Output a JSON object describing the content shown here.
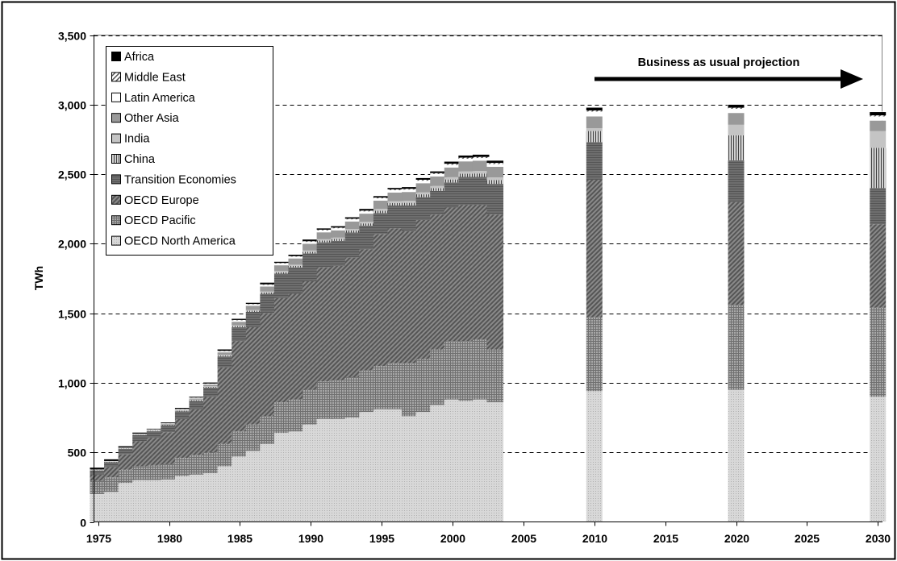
{
  "chart_data": {
    "type": "bar",
    "title": "",
    "xlabel": "",
    "ylabel": "TWh",
    "ylim": [
      0,
      3500
    ],
    "xlim": [
      1974.7,
      2030.3
    ],
    "grid": "horizontal dashed",
    "legend_position": "top-left",
    "annotation": "Business as usual projection",
    "y_ticks": [
      "0",
      "500",
      "1,000",
      "1,500",
      "2,000",
      "2,500",
      "3,000",
      "3,500"
    ],
    "x_ticks": [
      "1975",
      "1980",
      "1985",
      "1990",
      "1995",
      "2000",
      "2005",
      "2010",
      "2015",
      "2020",
      "2025",
      "2030"
    ],
    "x_tick_values": [
      1975,
      1980,
      1985,
      1990,
      1995,
      2000,
      2005,
      2010,
      2015,
      2020,
      2025,
      2030
    ],
    "legend": [
      "Africa",
      "Middle East",
      "Latin America",
      "Other Asia",
      "India",
      "China",
      "Transition Economies",
      "OECD Europe",
      "OECD Pacific",
      "OECD North America"
    ],
    "series_order": [
      "OECD North America",
      "OECD Pacific",
      "OECD Europe",
      "Transition Economies",
      "China",
      "India",
      "Other Asia",
      "Latin America",
      "Middle East",
      "Africa"
    ],
    "x": [
      1975,
      1976,
      1977,
      1978,
      1979,
      1980,
      1981,
      1982,
      1983,
      1984,
      1985,
      1986,
      1987,
      1988,
      1989,
      1990,
      1991,
      1992,
      1993,
      1994,
      1995,
      1996,
      1997,
      1998,
      1999,
      2000,
      2001,
      2002,
      2003,
      2010,
      2020,
      2030
    ],
    "series": [
      {
        "name": "OECD North America",
        "values": [
          200,
          215,
          280,
          300,
          300,
          305,
          330,
          340,
          350,
          400,
          470,
          510,
          560,
          640,
          650,
          700,
          740,
          740,
          750,
          790,
          810,
          810,
          760,
          790,
          840,
          880,
          870,
          880,
          860,
          940,
          950,
          900
        ]
      },
      {
        "name": "OECD Pacific",
        "values": [
          95,
          105,
          95,
          100,
          105,
          110,
          130,
          140,
          150,
          160,
          180,
          190,
          200,
          220,
          230,
          250,
          270,
          280,
          290,
          300,
          310,
          330,
          380,
          380,
          400,
          420,
          430,
          430,
          380,
          530,
          610,
          640
        ]
      },
      {
        "name": "OECD Europe",
        "values": [
          45,
          75,
          110,
          180,
          200,
          230,
          280,
          330,
          400,
          550,
          650,
          700,
          740,
          750,
          760,
          780,
          820,
          820,
          860,
          870,
          950,
          970,
          950,
          1000,
          970,
          960,
          980,
          970,
          970,
          990,
          740,
          600
        ]
      },
      {
        "name": "Transition Economies",
        "values": [
          30,
          35,
          40,
          45,
          48,
          50,
          55,
          60,
          65,
          80,
          100,
          110,
          140,
          175,
          190,
          200,
          180,
          180,
          180,
          170,
          150,
          165,
          185,
          165,
          170,
          180,
          200,
          200,
          220,
          270,
          300,
          260
        ]
      },
      {
        "name": "China",
        "values": [
          2,
          2,
          2,
          2,
          3,
          3,
          4,
          5,
          5,
          6,
          8,
          8,
          9,
          10,
          11,
          12,
          13,
          14,
          15,
          16,
          17,
          18,
          19,
          20,
          20,
          22,
          23,
          25,
          27,
          80,
          180,
          290
        ]
      },
      {
        "name": "India",
        "values": [
          2,
          2,
          2,
          2,
          3,
          3,
          3,
          4,
          5,
          5,
          6,
          6,
          7,
          8,
          8,
          9,
          9,
          10,
          10,
          12,
          13,
          13,
          14,
          14,
          15,
          16,
          17,
          18,
          20,
          20,
          75,
          120
        ]
      },
      {
        "name": "Other Asia",
        "values": [
          1,
          2,
          2,
          3,
          3,
          4,
          5,
          8,
          12,
          18,
          25,
          30,
          36,
          42,
          45,
          48,
          50,
          52,
          55,
          58,
          60,
          62,
          64,
          66,
          68,
          70,
          72,
          74,
          76,
          85,
          85,
          75
        ]
      },
      {
        "name": "Latin America",
        "values": [
          1,
          1,
          2,
          2,
          3,
          3,
          4,
          5,
          6,
          8,
          10,
          10,
          12,
          13,
          13,
          14,
          14,
          15,
          15,
          16,
          16,
          17,
          17,
          18,
          18,
          19,
          19,
          19,
          20,
          35,
          30,
          30
        ]
      },
      {
        "name": "Middle East",
        "values": [
          1,
          1,
          1,
          1,
          1,
          1,
          2,
          2,
          2,
          3,
          3,
          3,
          4,
          4,
          4,
          5,
          5,
          5,
          5,
          6,
          6,
          6,
          6,
          7,
          7,
          8,
          8,
          8,
          8,
          8,
          8,
          8
        ]
      },
      {
        "name": "Africa",
        "values": [
          13,
          12,
          10,
          7,
          4,
          6,
          7,
          6,
          7,
          10,
          8,
          8,
          12,
          8,
          10,
          12,
          9,
          10,
          10,
          12,
          10,
          10,
          12,
          12,
          12,
          15,
          15,
          16,
          16,
          22,
          23,
          25
        ]
      }
    ]
  }
}
